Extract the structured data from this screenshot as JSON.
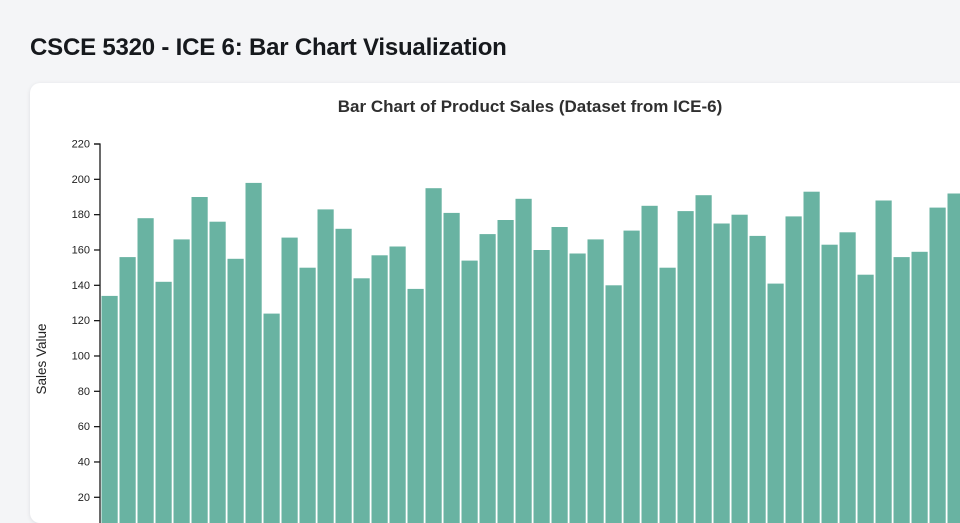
{
  "page": {
    "title": "CSCE 5320 - ICE 6: Bar Chart Visualization",
    "background_color": "#f4f5f7"
  },
  "chart_data": {
    "type": "bar",
    "title": "Bar Chart of Product Sales (Dataset from ICE-6)",
    "xlabel": "",
    "ylabel": "Sales Value",
    "ylim": [
      20,
      220
    ],
    "yticks": [
      220,
      200,
      180,
      160,
      140,
      120,
      100,
      80,
      60,
      40,
      20
    ],
    "grid": false,
    "legend": null,
    "bar_color": "#69b3a2",
    "axis_color": "#1a1a1a",
    "values": [
      134,
      156,
      178,
      142,
      166,
      190,
      176,
      155,
      198,
      124,
      167,
      150,
      183,
      172,
      144,
      157,
      162,
      138,
      195,
      181,
      154,
      169,
      177,
      189,
      160,
      173,
      158,
      166,
      140,
      171,
      185,
      150,
      182,
      191,
      175,
      180,
      168,
      141,
      179,
      193,
      163,
      170,
      146,
      188,
      156,
      159,
      184,
      192
    ]
  }
}
